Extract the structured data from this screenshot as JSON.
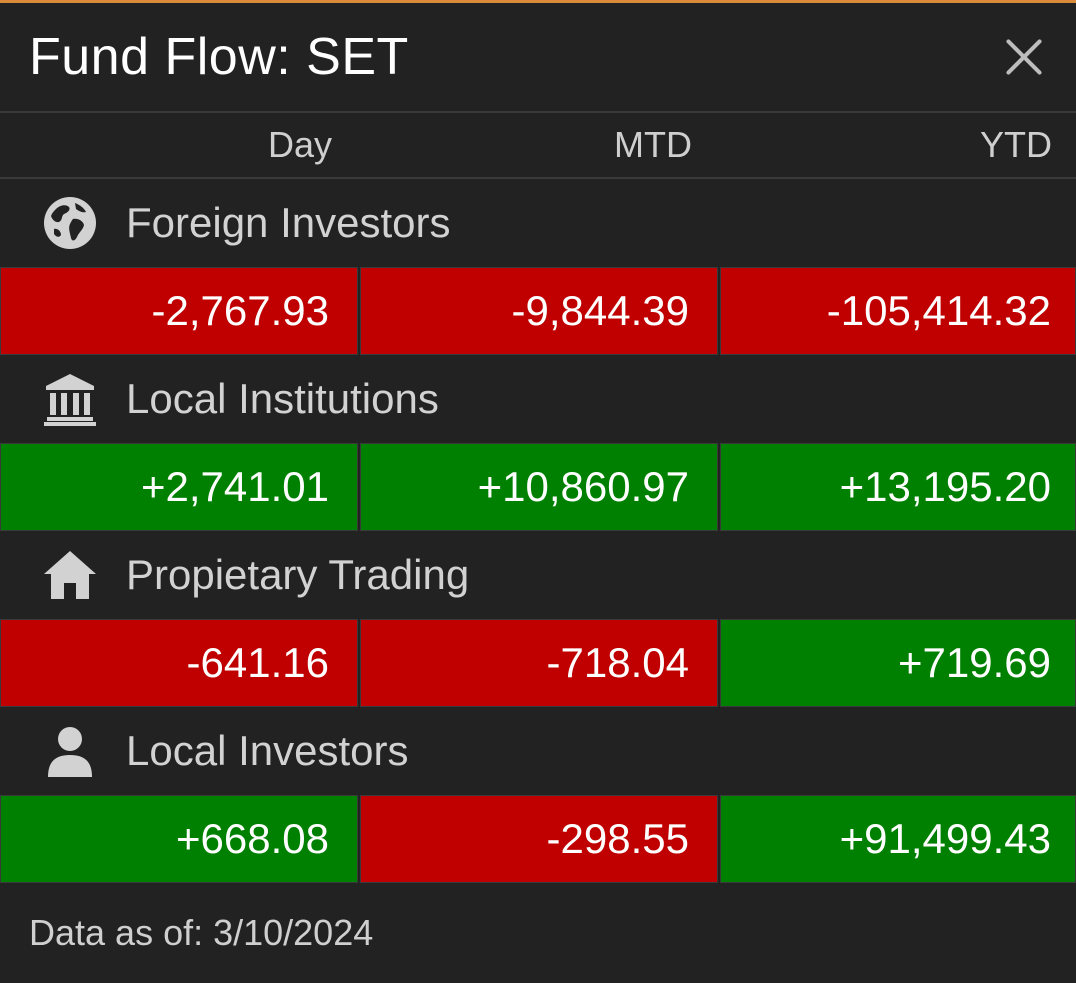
{
  "header": {
    "title": "Fund Flow: SET",
    "close_icon": "close-icon"
  },
  "columns": [
    "Day",
    "MTD",
    "YTD"
  ],
  "colors": {
    "negative": "#c00000",
    "positive": "#008000",
    "accent": "#d98a3a"
  },
  "rows": [
    {
      "label": "Foreign Investors",
      "icon": "globe-icon",
      "values": [
        "-2,767.93",
        "-9,844.39",
        "-105,414.32"
      ]
    },
    {
      "label": "Local Institutions",
      "icon": "bank-icon",
      "values": [
        "+2,741.01",
        "+10,860.97",
        "+13,195.20"
      ]
    },
    {
      "label": "Propietary Trading",
      "icon": "house-icon",
      "values": [
        "-641.16",
        "-718.04",
        "+719.69"
      ]
    },
    {
      "label": "Local Investors",
      "icon": "person-icon",
      "values": [
        "+668.08",
        "-298.55",
        "+91,499.43"
      ]
    }
  ],
  "footer": {
    "text": "Data as of: 3/10/2024"
  }
}
